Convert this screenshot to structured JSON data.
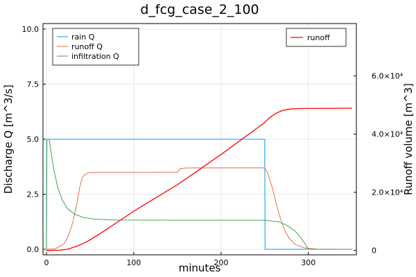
{
  "chart_data": {
    "type": "line",
    "title": "d_fcg_case_2_100",
    "xlabel": "minutes",
    "ylabel_left": "Discharge Q [m^3/s]",
    "ylabel_right": "Runoff volume [m^3]",
    "xlim": [
      -4,
      355
    ],
    "ylim_left": [
      -0.25,
      10.25
    ],
    "ylim_right": [
      -1500,
      78000
    ],
    "x_ticks": [
      0,
      100,
      200,
      300
    ],
    "y_left_ticks": [
      0.0,
      2.5,
      5.0,
      7.5,
      10.0
    ],
    "y_left_tick_labels": [
      "0.0",
      "2.5",
      "5.0",
      "7.5",
      "10.0"
    ],
    "y_right_ticks": [
      0,
      20000,
      40000,
      60000
    ],
    "y_right_tick_labels": [
      "0",
      "2.0×10⁴",
      "4.0×10⁴",
      "6.0×10⁴"
    ],
    "grid": true,
    "legend_left_placement": "top-left",
    "legend_right_placement": "top-right",
    "series": [
      {
        "name": "rain Q",
        "axis": "left",
        "color": "#009AFA",
        "points": [
          [
            0,
            0
          ],
          [
            0.3,
            5.0
          ],
          [
            250,
            5.0
          ],
          [
            250.4,
            0.0
          ],
          [
            350,
            0.0
          ]
        ]
      },
      {
        "name": "runoff Q",
        "axis": "left",
        "color": "#E26F46",
        "points": [
          [
            0,
            0.0
          ],
          [
            10,
            0.02
          ],
          [
            20,
            0.25
          ],
          [
            25,
            0.6
          ],
          [
            30,
            1.2
          ],
          [
            35,
            2.1
          ],
          [
            38,
            2.8
          ],
          [
            41,
            3.25
          ],
          [
            44,
            3.4
          ],
          [
            48,
            3.47
          ],
          [
            60,
            3.49
          ],
          [
            100,
            3.49
          ],
          [
            150,
            3.5
          ],
          [
            153,
            3.66
          ],
          [
            160,
            3.69
          ],
          [
            200,
            3.7
          ],
          [
            250,
            3.7
          ],
          [
            253,
            3.5
          ],
          [
            258,
            2.9
          ],
          [
            263,
            2.1
          ],
          [
            268,
            1.4
          ],
          [
            273,
            0.85
          ],
          [
            278,
            0.5
          ],
          [
            285,
            0.22
          ],
          [
            295,
            0.07
          ],
          [
            310,
            0.01
          ],
          [
            350,
            0.0
          ]
        ]
      },
      {
        "name": "infiltration Q",
        "axis": "left",
        "color": "#3DA44D",
        "points": [
          [
            0,
            0.0
          ],
          [
            0.5,
            5.0
          ],
          [
            3,
            5.0
          ],
          [
            6,
            4.2
          ],
          [
            9,
            3.5
          ],
          [
            13,
            2.8
          ],
          [
            18,
            2.25
          ],
          [
            24,
            1.85
          ],
          [
            32,
            1.6
          ],
          [
            42,
            1.45
          ],
          [
            55,
            1.37
          ],
          [
            80,
            1.33
          ],
          [
            150,
            1.32
          ],
          [
            250,
            1.32
          ],
          [
            265,
            1.26
          ],
          [
            275,
            1.1
          ],
          [
            285,
            0.82
          ],
          [
            292,
            0.5
          ],
          [
            297,
            0.2
          ],
          [
            300,
            0.0
          ],
          [
            350,
            0.0
          ]
        ]
      },
      {
        "name": "runoff",
        "axis": "right",
        "color": "#FF0000",
        "points": [
          [
            0,
            0
          ],
          [
            15,
            70
          ],
          [
            25,
            500
          ],
          [
            35,
            1500
          ],
          [
            45,
            2800
          ],
          [
            60,
            5500
          ],
          [
            100,
            13500
          ],
          [
            150,
            22600
          ],
          [
            200,
            33000
          ],
          [
            250,
            44000
          ],
          [
            255,
            45500
          ],
          [
            262,
            47000
          ],
          [
            270,
            48100
          ],
          [
            280,
            48650
          ],
          [
            295,
            48850
          ],
          [
            350,
            48900
          ]
        ]
      }
    ],
    "legend_left": [
      "rain Q",
      "runoff Q",
      "infiltration Q"
    ],
    "legend_right": [
      "runoff"
    ]
  }
}
